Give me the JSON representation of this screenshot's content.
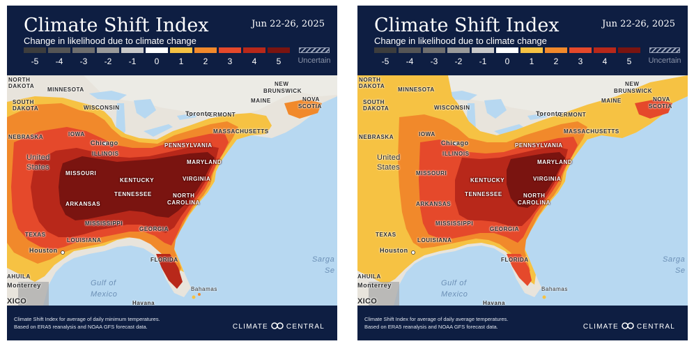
{
  "panels": [
    {
      "title": "Climate Shift Index",
      "date": "Jun 22-26, 2025",
      "subtitle": "Change in likelihood due to climate change",
      "footnote_line1": "Climate Shift Index for average of daily minimum temperatures.",
      "footnote_line2": "Based on ERA5 reanalysis and NOAA GFS forecast data.",
      "brand_left": "CLIMATE",
      "brand_right": "CENTRAL",
      "map_variant": "minimum temperatures"
    },
    {
      "title": "Climate Shift Index",
      "date": "Jun 22-26, 2025",
      "subtitle": "Change in likelihood due to climate change",
      "footnote_line1": "Climate Shift Index for average of daily average temperatures.",
      "footnote_line2": "Based on ERA5 reanalysis and NOAA GFS forecast data.",
      "brand_left": "CLIMATE",
      "brand_right": "CENTRAL",
      "map_variant": "average temperatures"
    }
  ],
  "legend": {
    "ticks": [
      "-5",
      "-4",
      "-3",
      "-2",
      "-1",
      "0",
      "1",
      "2",
      "3",
      "4",
      "5"
    ],
    "uncertain_label": "Uncertain",
    "colors": [
      "#3d3d3d",
      "#555555",
      "#6e6e6e",
      "#9a9a9a",
      "#c8c8c8",
      "#ffffff",
      "#f6c243",
      "#f1892b",
      "#e5492b",
      "#b8281a",
      "#7a1410"
    ]
  },
  "labels": {
    "north_dakota": "NORTH\nDAKOTA",
    "south_dakota": "SOUTH\nDAKOTA",
    "minnesota": "MINNESOTA",
    "wisconsin": "WISCONSIN",
    "iowa": "IOWA",
    "nebraska": "NEBRASKA",
    "illinois": "ILLINOIS",
    "chicago": "Chicago",
    "united_states_1": "United",
    "united_states_2": "States",
    "missouri": "MISSOURI",
    "kentucky": "KENTUCKY",
    "tennessee": "TENNESSEE",
    "arkansas": "ARKANSAS",
    "mississippi": "MISSISSIPPI",
    "georgia": "GEORGIA",
    "louisiana": "LOUISIANA",
    "texas": "TEXAS",
    "houston": "Houston",
    "florida": "FLORIDA",
    "north_carolina_1": "NORTH",
    "north_carolina_2": "CAROLINA",
    "virginia": "VIRGINIA",
    "maryland": "MARYLAND",
    "pennsylvania": "PENNSYLVANIA",
    "massachusetts": "MASSACHUSETTS",
    "vermont": "VERMONT",
    "toronto": "Toronto",
    "maine": "MAINE",
    "new_brunswick_1": "NEW",
    "new_brunswick_2": "BRUNSWICK",
    "nova_scotia_1": "NOVA",
    "nova_scotia_2": "SCOTIA",
    "gulf_1": "Gulf of",
    "gulf_2": "Mexico",
    "bahamas": "Bahamas",
    "havana": "Havana",
    "monterrey": "Monterrey",
    "coahuila": "AHUILA",
    "mexico": "XICO",
    "sargasso_1": "Sarga",
    "sargasso_2": "Se"
  }
}
